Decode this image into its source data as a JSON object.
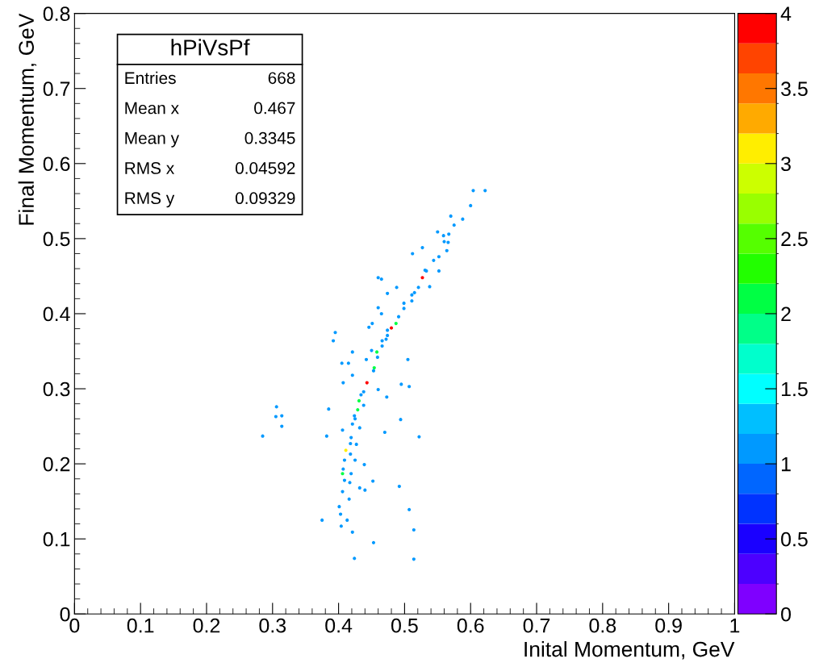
{
  "chart_data": {
    "type": "scatter",
    "title": "hPiVsPf",
    "xlabel": "Inital Momentum, GeV",
    "ylabel": "Final Momentum, GeV",
    "annotations": [
      "Entries 668",
      "Mean x 0.467",
      "Mean y 0.3345",
      "RMS x 0.04592",
      "RMS y 0.09329"
    ],
    "x": [
      0.604,
      0.622,
      0.6,
      0.588,
      0.575,
      0.567,
      0.559,
      0.56,
      0.566,
      0.55,
      0.57,
      0.512,
      0.527,
      0.564,
      0.552,
      0.544,
      0.531,
      0.552,
      0.527,
      0.521,
      0.538,
      0.511,
      0.46,
      0.465,
      0.488,
      0.474,
      0.499,
      0.46,
      0.465,
      0.491,
      0.48,
      0.451,
      0.446,
      0.474,
      0.466,
      0.395,
      0.392,
      0.45,
      0.421,
      0.442,
      0.459,
      0.505,
      0.453,
      0.405,
      0.415,
      0.443,
      0.421,
      0.407,
      0.495,
      0.507,
      0.438,
      0.46,
      0.431,
      0.473,
      0.429,
      0.438,
      0.306,
      0.305,
      0.314,
      0.314,
      0.285,
      0.385,
      0.382,
      0.424,
      0.421,
      0.494,
      0.406,
      0.432,
      0.47,
      0.522,
      0.419,
      0.418,
      0.411,
      0.427,
      0.418,
      0.409,
      0.425,
      0.439,
      0.407,
      0.419,
      0.406,
      0.409,
      0.417,
      0.452,
      0.432,
      0.44,
      0.492,
      0.406,
      0.416,
      0.401,
      0.403,
      0.375,
      0.413,
      0.507,
      0.404,
      0.421,
      0.453,
      0.514,
      0.424,
      0.514,
      0.487,
      0.515,
      0.533,
      0.466,
      0.458,
      0.454,
      0.434,
      0.425,
      0.499,
      0.511,
      0.474,
      0.472
    ],
    "values": [
      0.564,
      0.564,
      0.544,
      0.526,
      0.518,
      0.506,
      0.504,
      0.496,
      0.495,
      0.509,
      0.53,
      0.48,
      0.488,
      0.484,
      0.476,
      0.471,
      0.458,
      0.457,
      0.448,
      0.435,
      0.436,
      0.425,
      0.448,
      0.446,
      0.435,
      0.427,
      0.407,
      0.408,
      0.4,
      0.396,
      0.381,
      0.387,
      0.382,
      0.371,
      0.357,
      0.375,
      0.364,
      0.351,
      0.349,
      0.339,
      0.342,
      0.339,
      0.324,
      0.334,
      0.334,
      0.308,
      0.318,
      0.308,
      0.306,
      0.303,
      0.296,
      0.299,
      0.284,
      0.289,
      0.272,
      0.278,
      0.276,
      0.263,
      0.264,
      0.25,
      0.237,
      0.273,
      0.237,
      0.264,
      0.253,
      0.259,
      0.245,
      0.248,
      0.242,
      0.236,
      0.235,
      0.227,
      0.218,
      0.226,
      0.213,
      0.205,
      0.205,
      0.199,
      0.193,
      0.187,
      0.187,
      0.178,
      0.175,
      0.177,
      0.168,
      0.165,
      0.17,
      0.163,
      0.153,
      0.143,
      0.133,
      0.125,
      0.125,
      0.139,
      0.117,
      0.109,
      0.095,
      0.112,
      0.074,
      0.073,
      0.387,
      0.428,
      0.457,
      0.364,
      0.349,
      0.328,
      0.292,
      0.26,
      0.414,
      0.417,
      0.378,
      0.366
    ],
    "cvalues": [
      1,
      1,
      1,
      1,
      1,
      1,
      1,
      1,
      1,
      1,
      1,
      1,
      1,
      1,
      1,
      1,
      1,
      1,
      4,
      1,
      1,
      1,
      1,
      1,
      1,
      1,
      1,
      1,
      1,
      1,
      4,
      1,
      1,
      1,
      1,
      1,
      1,
      1,
      1,
      1,
      1,
      1,
      1,
      1,
      1,
      4,
      1,
      1,
      1,
      1,
      1,
      1,
      2,
      1,
      2,
      1,
      1,
      1,
      1,
      1,
      1,
      1,
      1,
      1,
      1,
      1,
      1,
      1,
      1,
      1,
      1,
      1,
      3,
      1,
      1,
      1,
      1,
      1,
      1,
      1,
      2,
      1,
      1,
      1,
      1,
      1,
      1,
      1,
      1,
      1,
      1,
      1,
      1,
      1,
      1,
      1,
      1,
      1,
      1,
      1,
      2,
      1,
      1,
      1,
      2,
      2,
      1,
      1,
      1,
      1,
      1,
      1
    ],
    "xlim": [
      0,
      1
    ],
    "xticks": [
      0,
      0.1,
      0.2,
      0.3,
      0.4,
      0.5,
      0.6,
      0.7,
      0.8,
      0.9,
      1
    ],
    "ylim": [
      0,
      0.8
    ],
    "yticks": [
      0,
      0.1,
      0.2,
      0.3,
      0.4,
      0.5,
      0.6,
      0.7,
      0.8
    ],
    "clim": [
      0,
      4
    ],
    "cticks": [
      0,
      0.5,
      1,
      1.5,
      2,
      2.5,
      3,
      3.5,
      4
    ],
    "marker": "circle",
    "grid": false,
    "legend": false
  }
}
